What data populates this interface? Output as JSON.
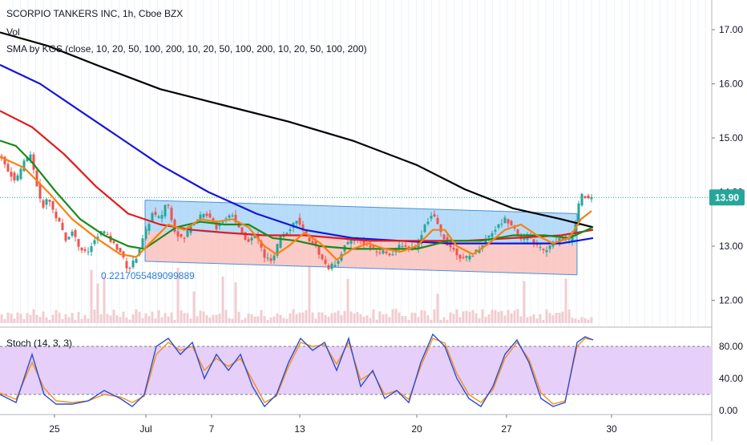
{
  "header": {
    "title": "SCORPIO TANKERS INC, 1h, Cboe BZX",
    "vol_label": "Vol",
    "sma_label": "SMA by KGS (close, 10, 20, 50, 100, 200, 10, 20, 50, 100, 200, 10, 20, 50, 100, 200)"
  },
  "stoch_label": "Stoch (14, 3, 3)",
  "annotation": "0.2217055489099889",
  "last_price": "13.90",
  "colors": {
    "up": "#26a69a",
    "down": "#ef5350",
    "volume": "#f0cdd0",
    "sma_black": "#000000",
    "sma_blue": "#1515d8",
    "sma_red": "#e41b1b",
    "sma_green": "#1b8a1b",
    "sma_orange": "#f7820f",
    "channel_upper_fill": "#9fd0f7",
    "channel_lower_fill": "#f9b9b6",
    "channel_line": "#4a90d9",
    "stoch_bg": "#e6cff9",
    "stoch_k": "#2b4cd8",
    "stoch_d": "#f7910f",
    "price_badge": "#26a69a",
    "annotation": "#2a7fd4"
  },
  "chart_data": [
    {
      "type": "candlestick",
      "title": "SCORPIO TANKERS INC, 1h, Cboe BZX",
      "x_ticks": [
        "25",
        "Jul",
        "7",
        "13",
        "20",
        "27",
        "30"
      ],
      "y_ticks": [
        "12.00",
        "13.00",
        "14.00",
        "15.00",
        "16.00",
        "17.00"
      ],
      "ylim": [
        11.6,
        17.5
      ],
      "last_price": 13.9,
      "price_path": [
        [
          0,
          14.7
        ],
        [
          10,
          14.4
        ],
        [
          20,
          14.2
        ],
        [
          30,
          14.55
        ],
        [
          38,
          14.7
        ],
        [
          45,
          14.2
        ],
        [
          52,
          13.7
        ],
        [
          60,
          13.9
        ],
        [
          68,
          13.6
        ],
        [
          75,
          13.4
        ],
        [
          82,
          13.1
        ],
        [
          90,
          13.3
        ],
        [
          98,
          13.0
        ],
        [
          108,
          12.85
        ],
        [
          118,
          13.1
        ],
        [
          128,
          13.3
        ],
        [
          138,
          13.1
        ],
        [
          150,
          12.9
        ],
        [
          160,
          12.55
        ],
        [
          170,
          12.8
        ],
        [
          180,
          13.2
        ],
        [
          190,
          13.6
        ],
        [
          200,
          13.5
        ],
        [
          208,
          13.85
        ],
        [
          218,
          13.3
        ],
        [
          228,
          13.1
        ],
        [
          238,
          13.4
        ],
        [
          250,
          13.55
        ],
        [
          260,
          13.6
        ],
        [
          270,
          13.35
        ],
        [
          280,
          13.5
        ],
        [
          290,
          13.6
        ],
        [
          300,
          13.25
        ],
        [
          310,
          13.1
        ],
        [
          320,
          13.2
        ],
        [
          330,
          12.8
        ],
        [
          340,
          12.7
        ],
        [
          350,
          13.2
        ],
        [
          360,
          13.3
        ],
        [
          370,
          13.5
        ],
        [
          380,
          13.2
        ],
        [
          392,
          13.05
        ],
        [
          402,
          12.75
        ],
        [
          410,
          12.6
        ],
        [
          420,
          12.7
        ],
        [
          430,
          13.0
        ],
        [
          440,
          13.15
        ],
        [
          450,
          13.1
        ],
        [
          460,
          13.0
        ],
        [
          470,
          12.9
        ],
        [
          480,
          12.9
        ],
        [
          490,
          12.85
        ],
        [
          500,
          13.05
        ],
        [
          510,
          12.95
        ],
        [
          520,
          13.0
        ],
        [
          530,
          13.4
        ],
        [
          540,
          13.6
        ],
        [
          548,
          13.3
        ],
        [
          558,
          13.05
        ],
        [
          568,
          12.9
        ],
        [
          578,
          12.75
        ],
        [
          590,
          12.85
        ],
        [
          600,
          13.0
        ],
        [
          610,
          13.2
        ],
        [
          620,
          13.35
        ],
        [
          630,
          13.5
        ],
        [
          640,
          13.4
        ],
        [
          650,
          13.1
        ],
        [
          660,
          13.2
        ],
        [
          670,
          13.0
        ],
        [
          680,
          12.9
        ],
        [
          690,
          13.05
        ],
        [
          700,
          13.15
        ],
        [
          710,
          13.1
        ],
        [
          718,
          13.4
        ],
        [
          724,
          13.95
        ],
        [
          732,
          13.88
        ],
        [
          740,
          13.9
        ]
      ],
      "sma_series": [
        {
          "color": "#000000",
          "points": [
            [
              0,
              16.95
            ],
            [
              60,
              16.7
            ],
            [
              120,
              16.35
            ],
            [
              200,
              15.9
            ],
            [
              280,
              15.6
            ],
            [
              360,
              15.3
            ],
            [
              440,
              14.95
            ],
            [
              520,
              14.5
            ],
            [
              580,
              14.05
            ],
            [
              640,
              13.7
            ],
            [
              700,
              13.5
            ],
            [
              740,
              13.35
            ]
          ]
        },
        {
          "color": "#1515d8",
          "points": [
            [
              0,
              16.35
            ],
            [
              50,
              16.0
            ],
            [
              100,
              15.5
            ],
            [
              150,
              15.0
            ],
            [
              200,
              14.5
            ],
            [
              260,
              14.0
            ],
            [
              320,
              13.6
            ],
            [
              380,
              13.3
            ],
            [
              440,
              13.15
            ],
            [
              500,
              13.1
            ],
            [
              560,
              13.05
            ],
            [
              640,
              13.05
            ],
            [
              700,
              13.05
            ],
            [
              740,
              13.15
            ]
          ]
        },
        {
          "color": "#e41b1b",
          "points": [
            [
              0,
              15.5
            ],
            [
              40,
              15.2
            ],
            [
              80,
              14.7
            ],
            [
              120,
              14.1
            ],
            [
              160,
              13.6
            ],
            [
              200,
              13.4
            ],
            [
              240,
              13.3
            ],
            [
              280,
              13.25
            ],
            [
              330,
              13.2
            ],
            [
              380,
              13.2
            ],
            [
              420,
              13.15
            ],
            [
              460,
              13.1
            ],
            [
              520,
              13.1
            ],
            [
              580,
              13.1
            ],
            [
              640,
              13.15
            ],
            [
              700,
              13.2
            ],
            [
              740,
              13.3
            ]
          ]
        },
        {
          "color": "#1b8a1b",
          "points": [
            [
              0,
              14.95
            ],
            [
              20,
              14.85
            ],
            [
              40,
              14.55
            ],
            [
              70,
              14.0
            ],
            [
              100,
              13.5
            ],
            [
              130,
              13.2
            ],
            [
              160,
              13.0
            ],
            [
              180,
              12.95
            ],
            [
              200,
              13.15
            ],
            [
              220,
              13.35
            ],
            [
              250,
              13.45
            ],
            [
              280,
              13.4
            ],
            [
              310,
              13.4
            ],
            [
              340,
              13.15
            ],
            [
              370,
              13.1
            ],
            [
              400,
              13.0
            ],
            [
              440,
              12.95
            ],
            [
              480,
              12.95
            ],
            [
              520,
              12.95
            ],
            [
              560,
              13.1
            ],
            [
              600,
              13.1
            ],
            [
              640,
              13.2
            ],
            [
              680,
              13.2
            ],
            [
              710,
              13.15
            ],
            [
              740,
              13.35
            ]
          ]
        },
        {
          "color": "#f7820f",
          "points": [
            [
              0,
              14.65
            ],
            [
              30,
              14.45
            ],
            [
              60,
              14.0
            ],
            [
              90,
              13.5
            ],
            [
              120,
              13.15
            ],
            [
              150,
              12.85
            ],
            [
              170,
              12.8
            ],
            [
              190,
              13.1
            ],
            [
              210,
              13.4
            ],
            [
              230,
              13.3
            ],
            [
              250,
              13.5
            ],
            [
              270,
              13.45
            ],
            [
              290,
              13.5
            ],
            [
              310,
              13.35
            ],
            [
              330,
              13.0
            ],
            [
              345,
              12.85
            ],
            [
              360,
              13.0
            ],
            [
              380,
              13.25
            ],
            [
              400,
              13.05
            ],
            [
              420,
              12.75
            ],
            [
              440,
              12.95
            ],
            [
              460,
              13.05
            ],
            [
              480,
              12.95
            ],
            [
              500,
              12.9
            ],
            [
              520,
              13.0
            ],
            [
              540,
              13.3
            ],
            [
              555,
              13.3
            ],
            [
              570,
              13.0
            ],
            [
              590,
              12.85
            ],
            [
              610,
              13.05
            ],
            [
              630,
              13.3
            ],
            [
              650,
              13.4
            ],
            [
              670,
              13.2
            ],
            [
              690,
              13.05
            ],
            [
              710,
              13.15
            ],
            [
              725,
              13.5
            ],
            [
              738,
              13.65
            ]
          ]
        }
      ],
      "channel": {
        "upper": {
          "from": [
            181,
            13.85
          ],
          "to": [
            720,
            13.6
          ]
        },
        "middle": {
          "from": [
            181,
            13.27
          ],
          "to": [
            720,
            13.03
          ]
        },
        "lower": {
          "from": [
            181,
            12.72
          ],
          "to": [
            720,
            12.47
          ]
        }
      }
    },
    {
      "type": "line",
      "title": "Stoch (14, 3, 3)",
      "y_ticks": [
        "0.00",
        "40.00",
        "80.00"
      ],
      "ylim": [
        -5,
        105
      ],
      "band": [
        20,
        80
      ],
      "series": [
        {
          "points": [
            [
              0,
              20
            ],
            [
              20,
              10
            ],
            [
              40,
              70
            ],
            [
              55,
              20
            ],
            [
              70,
              8
            ],
            [
              90,
              8
            ],
            [
              110,
              12
            ],
            [
              130,
              25
            ],
            [
              150,
              15
            ],
            [
              165,
              5
            ],
            [
              180,
              20
            ],
            [
              195,
              80
            ],
            [
              210,
              90
            ],
            [
              225,
              70
            ],
            [
              240,
              85
            ],
            [
              255,
              40
            ],
            [
              270,
              70
            ],
            [
              285,
              50
            ],
            [
              300,
              70
            ],
            [
              315,
              30
            ],
            [
              330,
              5
            ],
            [
              345,
              20
            ],
            [
              360,
              60
            ],
            [
              375,
              90
            ],
            [
              390,
              75
            ],
            [
              405,
              85
            ],
            [
              420,
              50
            ],
            [
              435,
              90
            ],
            [
              450,
              30
            ],
            [
              465,
              50
            ],
            [
              480,
              15
            ],
            [
              495,
              25
            ],
            [
              510,
              10
            ],
            [
              525,
              60
            ],
            [
              540,
              95
            ],
            [
              555,
              80
            ],
            [
              570,
              40
            ],
            [
              585,
              15
            ],
            [
              600,
              5
            ],
            [
              615,
              30
            ],
            [
              630,
              70
            ],
            [
              645,
              88
            ],
            [
              660,
              60
            ],
            [
              675,
              15
            ],
            [
              690,
              5
            ],
            [
              705,
              10
            ],
            [
              720,
              85
            ],
            [
              730,
              92
            ],
            [
              740,
              88
            ]
          ]
        },
        {
          "points": [
            [
              0,
              22
            ],
            [
              20,
              14
            ],
            [
              40,
              60
            ],
            [
              55,
              28
            ],
            [
              70,
              12
            ],
            [
              90,
              10
            ],
            [
              110,
              12
            ],
            [
              130,
              20
            ],
            [
              150,
              17
            ],
            [
              165,
              10
            ],
            [
              180,
              18
            ],
            [
              195,
              70
            ],
            [
              210,
              85
            ],
            [
              225,
              75
            ],
            [
              240,
              80
            ],
            [
              255,
              50
            ],
            [
              270,
              65
            ],
            [
              285,
              55
            ],
            [
              300,
              65
            ],
            [
              315,
              38
            ],
            [
              330,
              10
            ],
            [
              345,
              18
            ],
            [
              360,
              55
            ],
            [
              375,
              85
            ],
            [
              390,
              80
            ],
            [
              405,
              82
            ],
            [
              420,
              58
            ],
            [
              435,
              85
            ],
            [
              450,
              38
            ],
            [
              465,
              48
            ],
            [
              480,
              20
            ],
            [
              495,
              25
            ],
            [
              510,
              14
            ],
            [
              525,
              55
            ],
            [
              540,
              90
            ],
            [
              555,
              84
            ],
            [
              570,
              46
            ],
            [
              585,
              20
            ],
            [
              600,
              10
            ],
            [
              615,
              26
            ],
            [
              630,
              65
            ],
            [
              645,
              85
            ],
            [
              660,
              64
            ],
            [
              675,
              22
            ],
            [
              690,
              8
            ],
            [
              705,
              12
            ],
            [
              720,
              80
            ],
            [
              730,
              90
            ],
            [
              740,
              88
            ]
          ]
        }
      ]
    }
  ]
}
